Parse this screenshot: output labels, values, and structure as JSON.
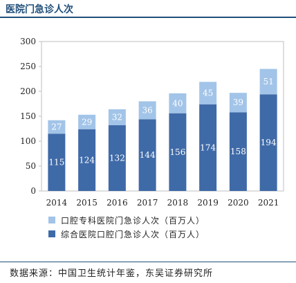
{
  "title": "医院门急诊人次",
  "source": "数据来源：中国卫生统计年鉴，东吴证券研究所",
  "chart_data": {
    "type": "bar",
    "stacked": true,
    "categories": [
      "2014",
      "2015",
      "2016",
      "2017",
      "2018",
      "2019",
      "2020",
      "2021"
    ],
    "series": [
      {
        "name": "综合医院口腔门急诊人次（百万人）",
        "values": [
          115,
          124,
          132,
          144,
          156,
          174,
          158,
          194
        ],
        "color": "#3f6aa8"
      },
      {
        "name": "口腔专科医院门急诊人次（百万人）",
        "values": [
          27,
          29,
          32,
          36,
          40,
          45,
          39,
          51
        ],
        "color": "#a2c4e8"
      }
    ],
    "yticks": [
      0,
      50,
      100,
      150,
      200,
      250,
      300
    ],
    "ylim": [
      0,
      300
    ],
    "legend_position": "bottom",
    "grid": false
  }
}
